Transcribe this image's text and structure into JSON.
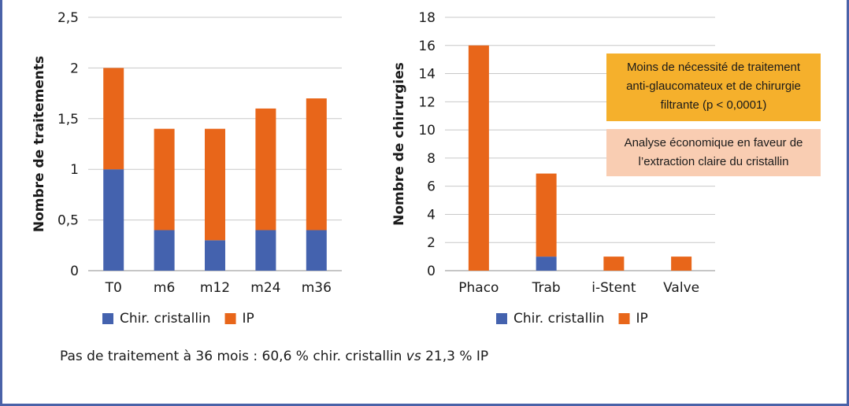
{
  "colors": {
    "chir": "#4462ae",
    "ip": "#e8661a",
    "frame": "#4a62a8",
    "box1": "#f5b02c",
    "box2": "#f9cdb2"
  },
  "chart_data": [
    {
      "type": "bar",
      "stacked": true,
      "ylabel": "Nombre de traitements",
      "ylim": [
        0,
        2.5
      ],
      "yticks": [
        "0",
        "0,5",
        "1",
        "1,5",
        "2",
        "2,5"
      ],
      "categories": [
        "T0",
        "m6",
        "m12",
        "m24",
        "m36"
      ],
      "series": [
        {
          "name": "Chir. cristallin",
          "values": [
            1.0,
            0.4,
            0.3,
            0.4,
            0.4
          ]
        },
        {
          "name": "IP",
          "values": [
            1.0,
            1.0,
            1.1,
            1.2,
            1.3
          ]
        }
      ],
      "grid": true,
      "legend": "bottom"
    },
    {
      "type": "bar",
      "stacked": true,
      "ylabel": "Nombre de chirurgies",
      "ylim": [
        0,
        18
      ],
      "yticks": [
        "0",
        "2",
        "4",
        "6",
        "8",
        "10",
        "12",
        "14",
        "16",
        "18"
      ],
      "categories": [
        "Phaco",
        "Trab",
        "i-Stent",
        "Valve"
      ],
      "series": [
        {
          "name": "Chir. cristallin",
          "values": [
            0,
            1,
            0,
            0
          ]
        },
        {
          "name": "IP",
          "values": [
            16,
            5.9,
            1,
            1
          ]
        }
      ],
      "grid": true,
      "legend": "bottom"
    }
  ],
  "annotations": {
    "box1": [
      "Moins de nécessité de traitement",
      "anti-glaucomateux et de chirurgie",
      "filtrante (p < 0,0001)"
    ],
    "box2": [
      "Analyse économique en faveur de",
      "l’extraction claire du cristallin"
    ]
  },
  "footer": {
    "before": "Pas de traitement à 36 mois : 60,6 % chir. cristallin ",
    "italic": "vs",
    "after": " 21,3 % IP"
  }
}
